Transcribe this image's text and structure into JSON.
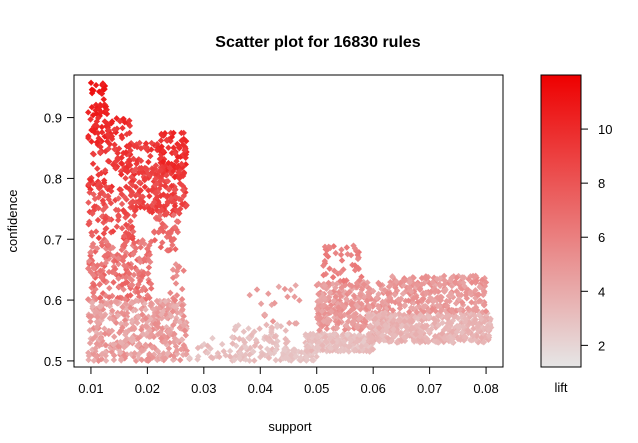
{
  "chart_data": {
    "type": "scatter",
    "title": "Scatter plot for 16830 rules",
    "xlabel": "support",
    "ylabel": "confidence",
    "xlim": [
      0.007,
      0.083
    ],
    "ylim": [
      0.49,
      0.97
    ],
    "x_ticks": [
      "0.01",
      "0.02",
      "0.03",
      "0.04",
      "0.05",
      "0.06",
      "0.07",
      "0.08"
    ],
    "y_ticks": [
      "0.5",
      "0.6",
      "0.7",
      "0.8",
      "0.9"
    ],
    "color_scale": {
      "label": "lift",
      "min": 1.2,
      "max": 12,
      "ticks": [
        "2",
        "4",
        "6",
        "8",
        "10"
      ],
      "low_color": "#e6e6e6",
      "high_color": "#ee0000"
    },
    "point_clusters": [
      {
        "x": [
          0.0095,
          0.0125
        ],
        "y": [
          0.935,
          0.96
        ],
        "lift": [
          10.5,
          11.5
        ],
        "n": 14
      },
      {
        "x": [
          0.0095,
          0.013
        ],
        "y": [
          0.9,
          0.93
        ],
        "lift": [
          10,
          11
        ],
        "n": 20
      },
      {
        "x": [
          0.0095,
          0.0145
        ],
        "y": [
          0.855,
          0.9
        ],
        "lift": [
          9.5,
          10.5
        ],
        "n": 35
      },
      {
        "x": [
          0.0095,
          0.017
        ],
        "y": [
          0.78,
          0.855
        ],
        "lift": [
          8.5,
          10
        ],
        "n": 70
      },
      {
        "x": [
          0.0095,
          0.018
        ],
        "y": [
          0.7,
          0.78
        ],
        "lift": [
          7,
          9
        ],
        "n": 90
      },
      {
        "x": [
          0.0095,
          0.021
        ],
        "y": [
          0.6,
          0.7
        ],
        "lift": [
          5.5,
          7.5
        ],
        "n": 200
      },
      {
        "x": [
          0.0095,
          0.027
        ],
        "y": [
          0.5,
          0.6
        ],
        "lift": [
          3.5,
          5.5
        ],
        "n": 420
      },
      {
        "x": [
          0.0125,
          0.017
        ],
        "y": [
          0.845,
          0.9
        ],
        "lift": [
          9,
          10.5
        ],
        "n": 25
      },
      {
        "x": [
          0.016,
          0.022
        ],
        "y": [
          0.8,
          0.86
        ],
        "lift": [
          8.5,
          10
        ],
        "n": 45
      },
      {
        "x": [
          0.017,
          0.027
        ],
        "y": [
          0.74,
          0.82
        ],
        "lift": [
          8,
          9.5
        ],
        "n": 160
      },
      {
        "x": [
          0.022,
          0.027
        ],
        "y": [
          0.8,
          0.875
        ],
        "lift": [
          9,
          10.5
        ],
        "n": 90
      },
      {
        "x": [
          0.021,
          0.0255
        ],
        "y": [
          0.68,
          0.74
        ],
        "lift": [
          6.5,
          7.5
        ],
        "n": 40
      },
      {
        "x": [
          0.024,
          0.0265
        ],
        "y": [
          0.59,
          0.66
        ],
        "lift": [
          5,
          6
        ],
        "n": 15
      },
      {
        "x": [
          0.027,
          0.037
        ],
        "y": [
          0.5,
          0.54
        ],
        "lift": [
          2.5,
          3.5
        ],
        "n": 30
      },
      {
        "x": [
          0.035,
          0.045
        ],
        "y": [
          0.5,
          0.56
        ],
        "lift": [
          2.5,
          3.5
        ],
        "n": 90
      },
      {
        "x": [
          0.038,
          0.047
        ],
        "y": [
          0.56,
          0.63
        ],
        "lift": [
          4,
          5
        ],
        "n": 20
      },
      {
        "x": [
          0.044,
          0.05
        ],
        "y": [
          0.5,
          0.52
        ],
        "lift": [
          2.5,
          3
        ],
        "n": 60
      },
      {
        "x": [
          0.048,
          0.06
        ],
        "y": [
          0.515,
          0.545
        ],
        "lift": [
          2.5,
          3.5
        ],
        "n": 200
      },
      {
        "x": [
          0.05,
          0.063
        ],
        "y": [
          0.55,
          0.63
        ],
        "lift": [
          4,
          5.5
        ],
        "n": 320
      },
      {
        "x": [
          0.051,
          0.058
        ],
        "y": [
          0.63,
          0.69
        ],
        "lift": [
          5.5,
          6.5
        ],
        "n": 45
      },
      {
        "x": [
          0.059,
          0.081
        ],
        "y": [
          0.53,
          0.58
        ],
        "lift": [
          3,
          4
        ],
        "n": 450
      },
      {
        "x": [
          0.063,
          0.08
        ],
        "y": [
          0.58,
          0.64
        ],
        "lift": [
          4,
          5.5
        ],
        "n": 260
      }
    ]
  }
}
